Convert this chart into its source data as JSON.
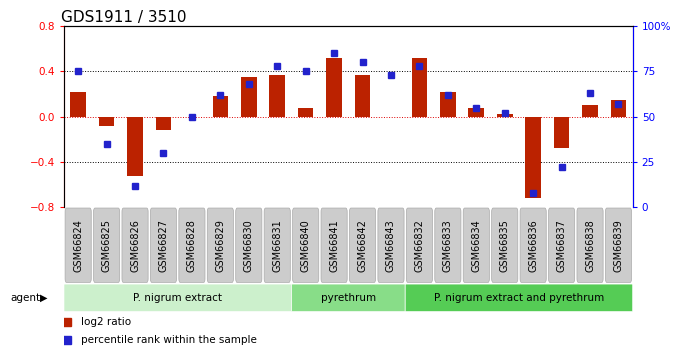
{
  "title": "GDS1911 / 3510",
  "samples": [
    "GSM66824",
    "GSM66825",
    "GSM66826",
    "GSM66827",
    "GSM66828",
    "GSM66829",
    "GSM66830",
    "GSM66831",
    "GSM66840",
    "GSM66841",
    "GSM66842",
    "GSM66843",
    "GSM66832",
    "GSM66833",
    "GSM66834",
    "GSM66835",
    "GSM66836",
    "GSM66837",
    "GSM66838",
    "GSM66839"
  ],
  "log2_ratio": [
    0.22,
    -0.08,
    -0.52,
    -0.12,
    0.0,
    0.18,
    0.35,
    0.37,
    0.08,
    0.52,
    0.37,
    0.0,
    0.52,
    0.22,
    0.08,
    0.02,
    -0.72,
    -0.28,
    0.1,
    0.15
  ],
  "percentile": [
    75,
    35,
    12,
    30,
    50,
    62,
    68,
    78,
    75,
    85,
    80,
    73,
    78,
    62,
    55,
    52,
    8,
    22,
    63,
    57
  ],
  "groups": [
    {
      "label": "P. nigrum extract",
      "start": 0,
      "end": 8,
      "color": "#ccf0cc"
    },
    {
      "label": "pyrethrum",
      "start": 8,
      "end": 12,
      "color": "#88dd88"
    },
    {
      "label": "P. nigrum extract and pyrethrum",
      "start": 12,
      "end": 20,
      "color": "#55cc55"
    }
  ],
  "bar_color": "#bb2200",
  "dot_color": "#2222cc",
  "ylim_left": [
    -0.8,
    0.8
  ],
  "ylim_right": [
    0,
    100
  ],
  "yticks_left": [
    -0.8,
    -0.4,
    0.0,
    0.4,
    0.8
  ],
  "yticks_right": [
    0,
    25,
    50,
    75,
    100
  ],
  "hline_color": "#dd0000",
  "background_color": "#ffffff",
  "legend_log2": "log2 ratio",
  "legend_pct": "percentile rank within the sample",
  "agent_label": "agent",
  "title_fontsize": 11,
  "tick_label_fontsize": 7,
  "label_box_color": "#cccccc",
  "label_box_edge": "#aaaaaa"
}
